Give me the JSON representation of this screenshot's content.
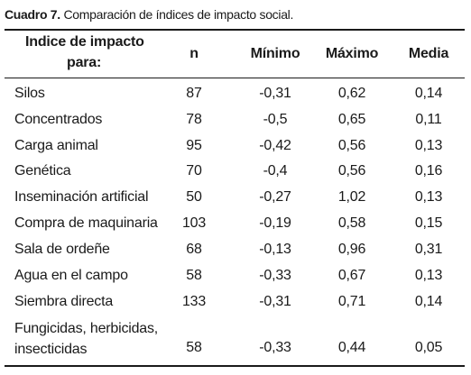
{
  "caption": {
    "label": "Cuadro 7.",
    "text": " Comparación de índices de impacto social."
  },
  "headers": {
    "indice_line1": "Indice de impacto",
    "indice_line2": "para:",
    "n": "n",
    "minimo": "Mínimo",
    "maximo": "Máximo",
    "media": "Media"
  },
  "rows": [
    {
      "name": "Silos",
      "n": "87",
      "min": "-0,31",
      "max": "0,62",
      "media": "0,14"
    },
    {
      "name": "Concentrados",
      "n": "78",
      "min": "-0,5",
      "max": "0,65",
      "media": "0,11"
    },
    {
      "name": "Carga animal",
      "n": "95",
      "min": "-0,42",
      "max": "0,56",
      "media": "0,13"
    },
    {
      "name": "Genética",
      "n": "70",
      "min": "-0,4",
      "max": "0,56",
      "media": "0,16"
    },
    {
      "name": "Inseminación artificial",
      "n": "50",
      "min": "-0,27",
      "max": "1,02",
      "media": "0,13"
    },
    {
      "name": "Compra de maquinaria",
      "n": "103",
      "min": "-0,19",
      "max": "0,58",
      "media": "0,15"
    },
    {
      "name": "Sala de ordeñe",
      "n": "68",
      "min": "-0,13",
      "max": "0,96",
      "media": "0,31"
    },
    {
      "name": "Agua en el campo",
      "n": "58",
      "min": "-0,33",
      "max": "0,67",
      "media": "0,13"
    },
    {
      "name": "Siembra directa",
      "n": "133",
      "min": "-0,31",
      "max": "0,71",
      "media": "0,14"
    }
  ],
  "last_row": {
    "name_line1": "Fungicidas, herbicidas,",
    "name_line2": "insecticidas",
    "n": "58",
    "min": "-0,33",
    "max": "0,44",
    "media": "0,05"
  }
}
